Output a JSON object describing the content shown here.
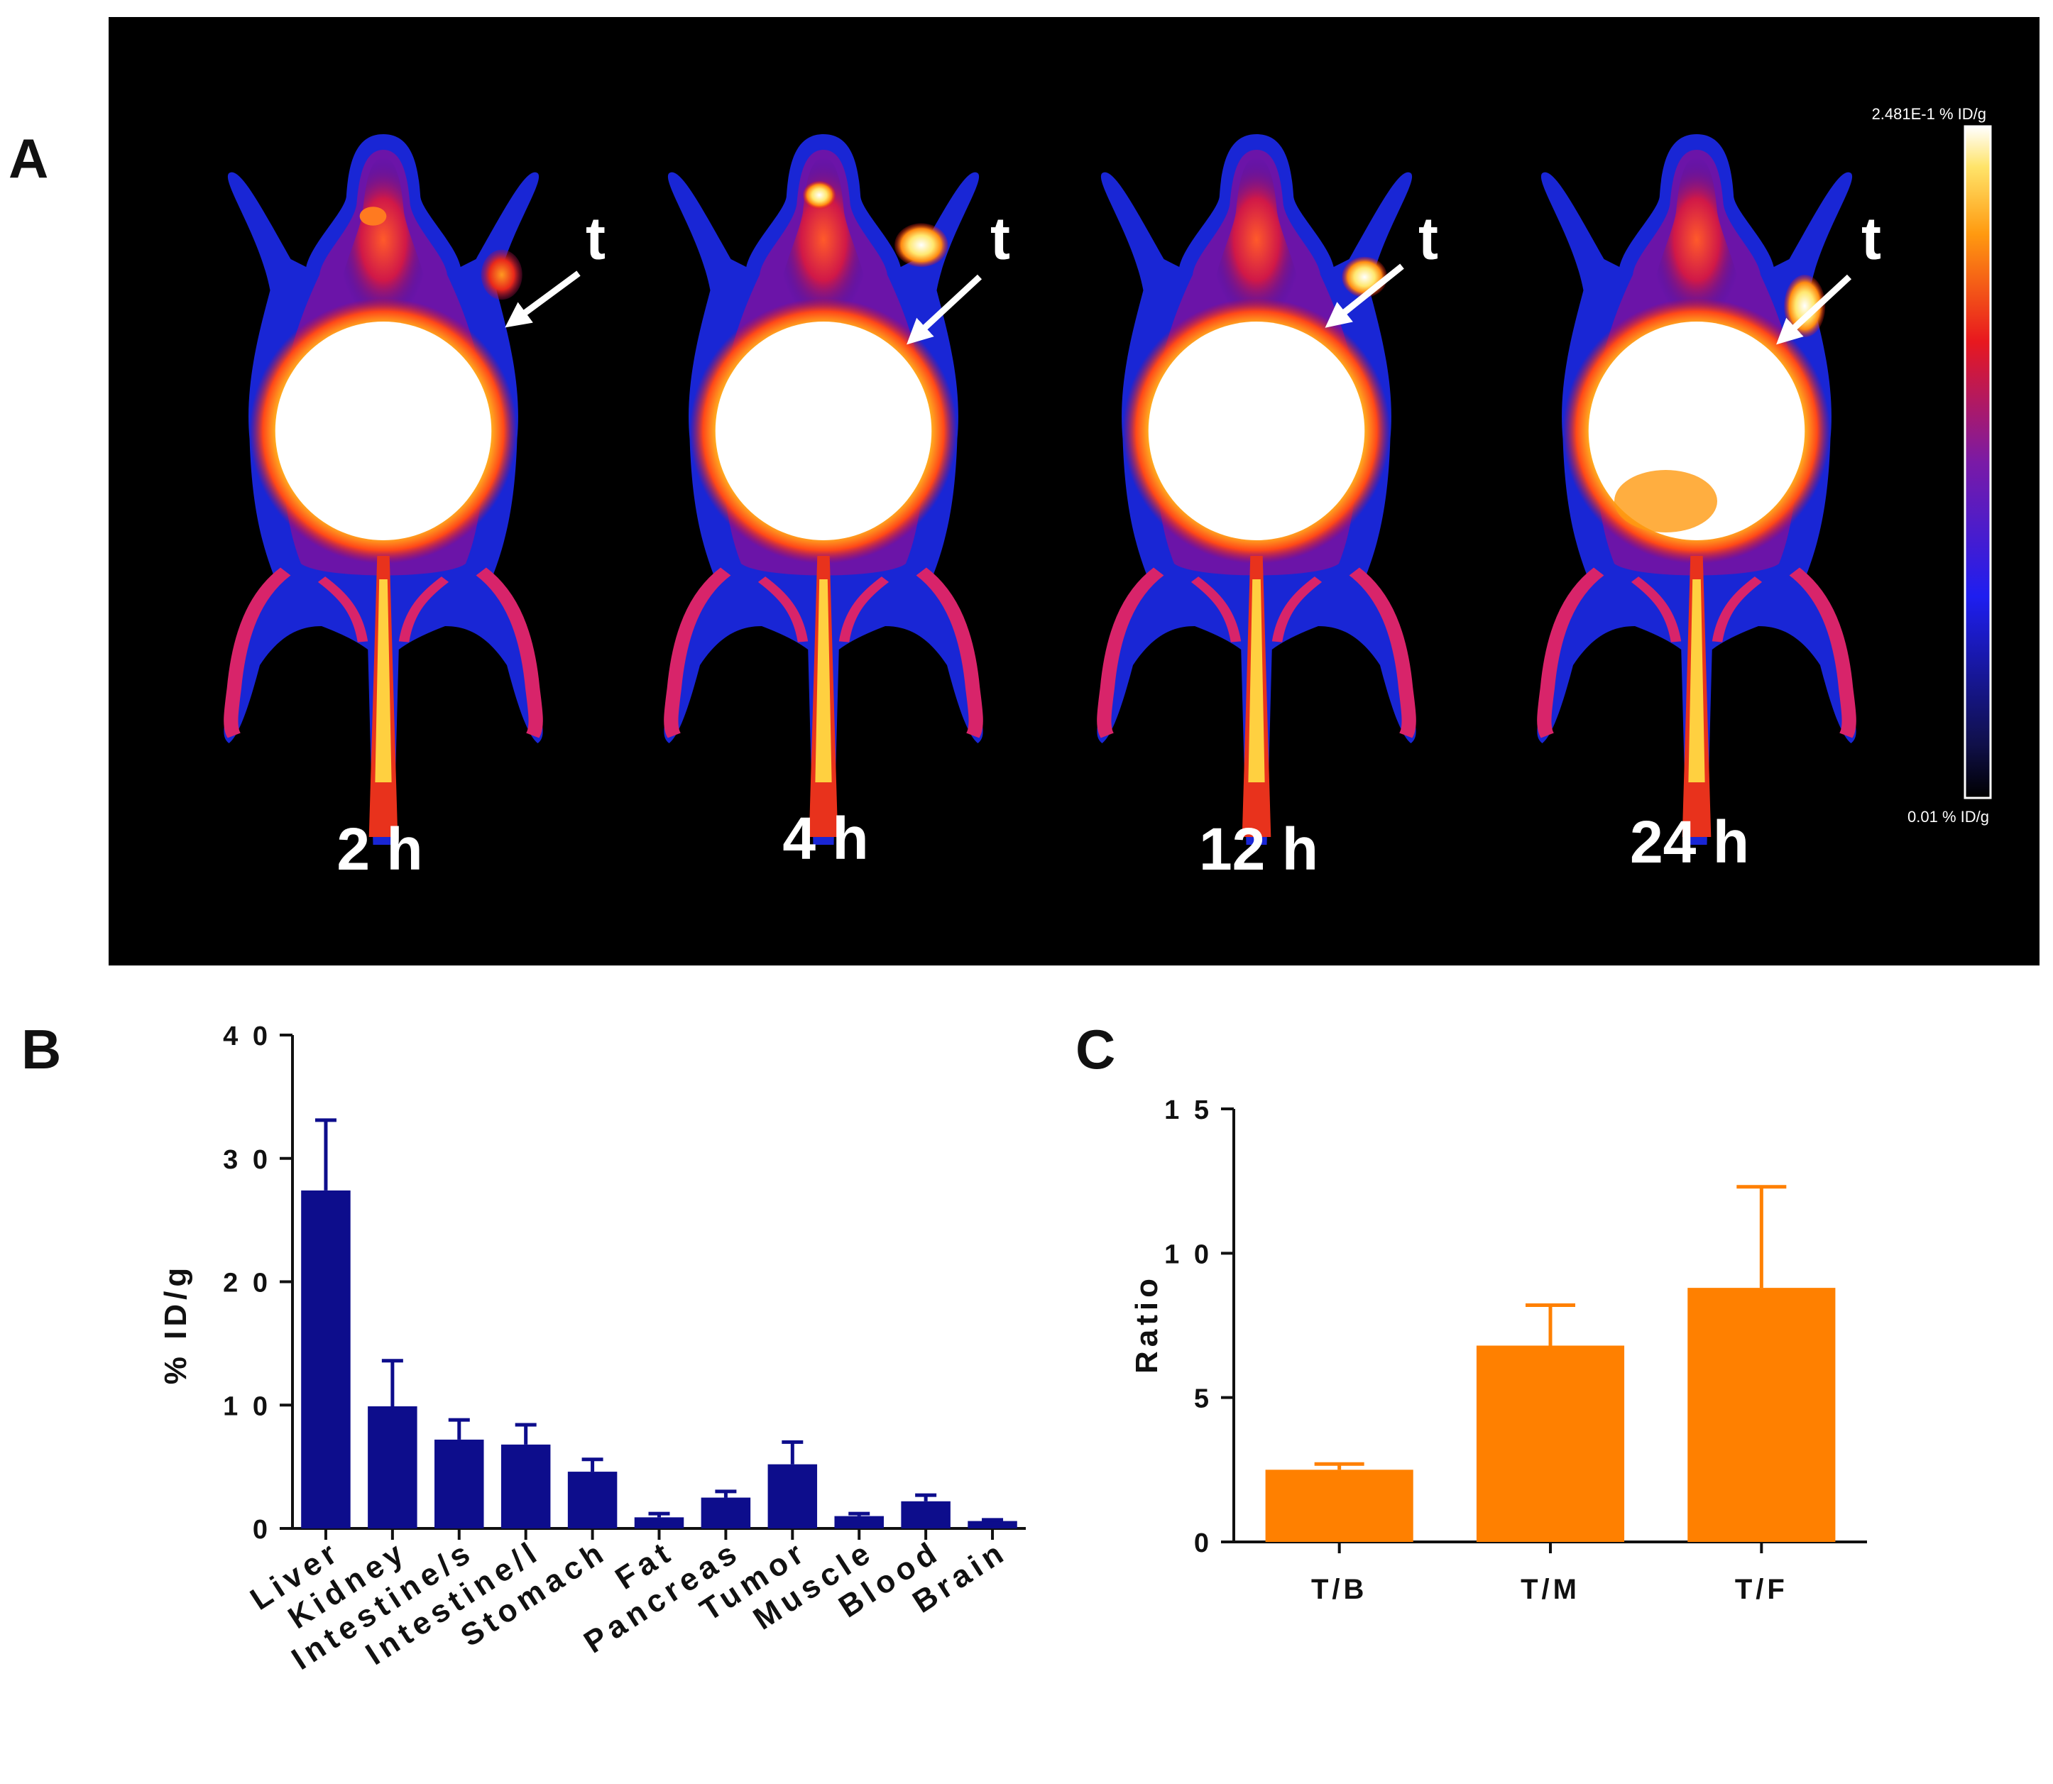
{
  "panel_a": {
    "letter": "A",
    "colorbar": {
      "max_label": "2.481E-1 % ID/g",
      "min_label": "0.01 % ID/g"
    },
    "timepoints": [
      {
        "label": "2 h",
        "marker": "t"
      },
      {
        "label": "4 h",
        "marker": "t"
      },
      {
        "label": "12 h",
        "marker": "t"
      },
      {
        "label": "24 h",
        "marker": "t"
      }
    ],
    "colors": {
      "background": "#000000",
      "arrow": "#ffffff"
    }
  },
  "panel_b": {
    "letter": "B"
  },
  "panel_c": {
    "letter": "C"
  },
  "chart_data": [
    {
      "id": "B",
      "type": "bar",
      "title": "",
      "xlabel": "",
      "ylabel": "% ID/g",
      "ylim": [
        0,
        40
      ],
      "yticks": [
        0,
        10,
        20,
        30,
        40
      ],
      "ytick_labels": [
        "0",
        "1 0",
        "2 0",
        "3 0",
        "4 0"
      ],
      "categories": [
        "Liver",
        "Kidney",
        "Intestine/s",
        "Intestine/l",
        "Stomach",
        "Fat",
        "Pancreas",
        "Tumor",
        "Muscle",
        "Blood",
        "Brain"
      ],
      "values": [
        27.4,
        9.9,
        7.2,
        6.8,
        4.6,
        0.9,
        2.5,
        5.2,
        1.0,
        2.2,
        0.6
      ],
      "errors": [
        5.7,
        3.7,
        1.6,
        1.6,
        1.0,
        0.3,
        0.5,
        1.8,
        0.2,
        0.5,
        0.1
      ],
      "color": "#0d0d8c",
      "grid": false
    },
    {
      "id": "C",
      "type": "bar",
      "title": "",
      "xlabel": "",
      "ylabel": "Ratio",
      "ylim": [
        0,
        15
      ],
      "yticks": [
        0,
        5,
        10,
        15
      ],
      "ytick_labels": [
        "0",
        "5",
        "1 0",
        "1 5"
      ],
      "categories": [
        "T/B",
        "T/M",
        "T/F"
      ],
      "values": [
        2.5,
        6.8,
        8.8
      ],
      "errors": [
        0.2,
        1.4,
        3.5
      ],
      "color": "#ff8000",
      "grid": false
    }
  ]
}
